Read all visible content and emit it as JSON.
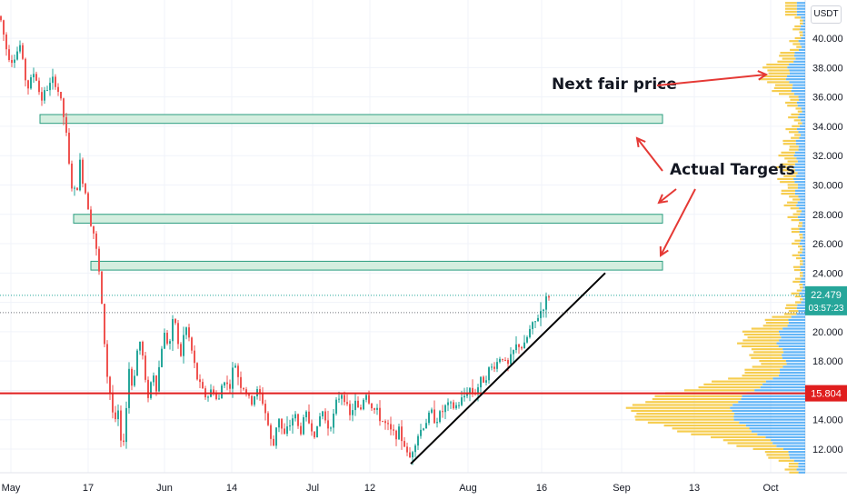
{
  "currency": "USDT",
  "chart_data": {
    "type": "candlestick",
    "y_axis": {
      "ticks": [
        "12.000",
        "14.000",
        "16.000",
        "18.000",
        "20.000",
        "22.000",
        "24.000",
        "26.000",
        "28.000",
        "30.000",
        "32.000",
        "34.000",
        "36.000",
        "38.000",
        "40.000"
      ],
      "tick_values": [
        12,
        14,
        16,
        18,
        20,
        22,
        24,
        26,
        28,
        30,
        32,
        34,
        36,
        38,
        40
      ],
      "ylim": [
        10.0,
        42.0
      ]
    },
    "x_axis": {
      "ticks": [
        "May",
        "17",
        "Jun",
        "14",
        "Jul",
        "12",
        "Aug",
        "16",
        "Sep",
        "13",
        "Oct"
      ]
    },
    "price_path": [
      [
        0,
        41.5
      ],
      [
        8,
        39.0
      ],
      [
        14,
        38.5
      ],
      [
        22,
        39.5
      ],
      [
        30,
        36.5
      ],
      [
        38,
        37.8
      ],
      [
        45,
        35.8
      ],
      [
        52,
        36.6
      ],
      [
        60,
        37.2
      ],
      [
        66,
        36.0
      ],
      [
        72,
        34.0
      ],
      [
        78,
        30.0
      ],
      [
        84,
        29.3
      ],
      [
        88,
        31.5
      ],
      [
        92,
        30.0
      ],
      [
        96,
        29.0
      ],
      [
        100,
        27.5
      ],
      [
        104,
        26.5
      ],
      [
        110,
        23.5
      ],
      [
        114,
        20.0
      ],
      [
        118,
        17.0
      ],
      [
        122,
        15.5
      ],
      [
        126,
        13.5
      ],
      [
        130,
        14.5
      ],
      [
        134,
        11.5
      ],
      [
        138,
        14.0
      ],
      [
        142,
        17.5
      ],
      [
        146,
        16.0
      ],
      [
        150,
        18.5
      ],
      [
        155,
        19.5
      ],
      [
        160,
        16.5
      ],
      [
        164,
        15.5
      ],
      [
        168,
        17.5
      ],
      [
        172,
        16.2
      ],
      [
        176,
        18.0
      ],
      [
        180,
        20.0
      ],
      [
        186,
        19.0
      ],
      [
        192,
        21.2
      ],
      [
        198,
        18.0
      ],
      [
        204,
        20.5
      ],
      [
        210,
        19.0
      ],
      [
        216,
        17.0
      ],
      [
        222,
        16.0
      ],
      [
        228,
        15.5
      ],
      [
        234,
        16.2
      ],
      [
        240,
        15.0
      ],
      [
        246,
        17.0
      ],
      [
        252,
        16.0
      ],
      [
        258,
        18.0
      ],
      [
        264,
        16.5
      ],
      [
        270,
        16.0
      ],
      [
        276,
        15.0
      ],
      [
        282,
        16.0
      ],
      [
        288,
        15.5
      ],
      [
        294,
        14.0
      ],
      [
        300,
        11.8
      ],
      [
        306,
        14.5
      ],
      [
        312,
        12.8
      ],
      [
        318,
        13.5
      ],
      [
        324,
        14.5
      ],
      [
        330,
        13.0
      ],
      [
        336,
        14.5
      ],
      [
        342,
        13.5
      ],
      [
        348,
        13.0
      ],
      [
        354,
        14.8
      ],
      [
        360,
        13.5
      ],
      [
        366,
        14.0
      ],
      [
        372,
        15.5
      ],
      [
        378,
        16.0
      ],
      [
        384,
        14.0
      ],
      [
        390,
        15.2
      ],
      [
        396,
        14.5
      ],
      [
        402,
        16.0
      ],
      [
        408,
        15.0
      ],
      [
        414,
        14.5
      ],
      [
        420,
        14.0
      ],
      [
        426,
        13.5
      ],
      [
        432,
        13.0
      ],
      [
        438,
        13.2
      ],
      [
        444,
        12.5
      ],
      [
        450,
        11.2
      ],
      [
        456,
        12.5
      ],
      [
        462,
        13.2
      ],
      [
        468,
        13.8
      ],
      [
        474,
        14.5
      ],
      [
        480,
        14.0
      ],
      [
        486,
        14.5
      ],
      [
        492,
        15.0
      ],
      [
        498,
        14.8
      ],
      [
        504,
        15.0
      ],
      [
        510,
        15.5
      ],
      [
        516,
        16.2
      ],
      [
        522,
        15.8
      ],
      [
        528,
        16.5
      ],
      [
        534,
        17.0
      ],
      [
        540,
        17.5
      ],
      [
        546,
        17.8
      ],
      [
        552,
        18.5
      ],
      [
        558,
        17.5
      ],
      [
        564,
        18.5
      ],
      [
        570,
        19.2
      ],
      [
        576,
        18.8
      ],
      [
        582,
        20.0
      ],
      [
        588,
        20.5
      ],
      [
        594,
        21.3
      ],
      [
        600,
        22.0
      ],
      [
        604,
        22.5
      ]
    ],
    "current_price": 22.479,
    "countdown": "03:57:23",
    "support_level": 15.804,
    "current_price_line_color": "#26a69a",
    "support_line_color": "#e01e1e",
    "trendline": {
      "start_price": 11.0,
      "end_price": 24.0
    },
    "target_zones": [
      {
        "low": 34.2,
        "high": 34.8
      },
      {
        "low": 27.4,
        "high": 28.0
      },
      {
        "low": 24.2,
        "high": 24.8
      }
    ],
    "annotations": {
      "next_fair_price": "Next fair price",
      "actual_targets": "Actual Targets"
    },
    "colors": {
      "up": "#26a69a",
      "down": "#ef5350",
      "zone_fill": "#d4eedf",
      "zone_stroke": "#2a9d7f",
      "volume_up": "#2196f3",
      "volume_down": "#f4c430",
      "arrow": "#e53935"
    }
  }
}
